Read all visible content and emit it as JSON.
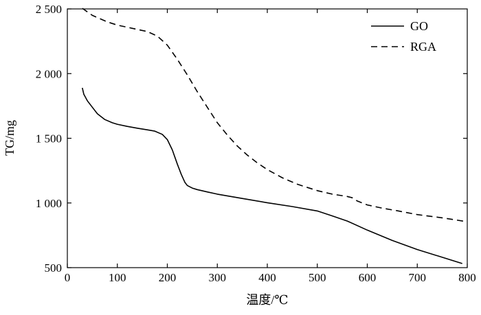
{
  "chart_data": {
    "type": "line",
    "title": "",
    "xlabel": "温度/℃",
    "ylabel": "TG/mg",
    "xlim": [
      0,
      800
    ],
    "ylim": [
      500,
      2500
    ],
    "x_ticks": [
      0,
      100,
      200,
      300,
      400,
      500,
      600,
      700,
      800
    ],
    "x_tick_labels": [
      "0",
      "100",
      "200",
      "300",
      "400",
      "500",
      "600",
      "700",
      "800"
    ],
    "y_ticks": [
      500,
      1000,
      1500,
      2000,
      2500
    ],
    "y_tick_labels": [
      "500",
      "1 000",
      "1 500",
      "2 000",
      "2 500"
    ],
    "grid": false,
    "legend_position": "top-right",
    "series": [
      {
        "name": "GO",
        "style": "solid",
        "color": "#000000",
        "x": [
          30,
          33,
          40,
          50,
          60,
          75,
          90,
          100,
          120,
          140,
          160,
          175,
          190,
          200,
          210,
          220,
          228,
          235,
          240,
          245,
          250,
          260,
          280,
          300,
          350,
          400,
          450,
          500,
          530,
          560,
          600,
          650,
          700,
          750,
          790
        ],
        "y": [
          1890,
          1840,
          1790,
          1740,
          1690,
          1645,
          1620,
          1608,
          1592,
          1578,
          1565,
          1555,
          1530,
          1490,
          1410,
          1300,
          1220,
          1160,
          1135,
          1125,
          1115,
          1103,
          1085,
          1068,
          1035,
          1002,
          972,
          938,
          900,
          860,
          790,
          710,
          640,
          580,
          532
        ]
      },
      {
        "name": "RGA",
        "style": "dashed",
        "color": "#000000",
        "x": [
          30,
          50,
          80,
          100,
          130,
          160,
          180,
          200,
          220,
          240,
          260,
          280,
          300,
          320,
          340,
          360,
          380,
          400,
          430,
          460,
          500,
          530,
          560,
          570,
          580,
          600,
          630,
          660,
          700,
          750,
          800
        ],
        "y": [
          2505,
          2450,
          2400,
          2375,
          2350,
          2325,
          2290,
          2220,
          2110,
          1990,
          1860,
          1740,
          1620,
          1525,
          1440,
          1370,
          1310,
          1258,
          1195,
          1145,
          1095,
          1068,
          1050,
          1040,
          1015,
          985,
          960,
          940,
          910,
          885,
          855
        ]
      }
    ]
  }
}
